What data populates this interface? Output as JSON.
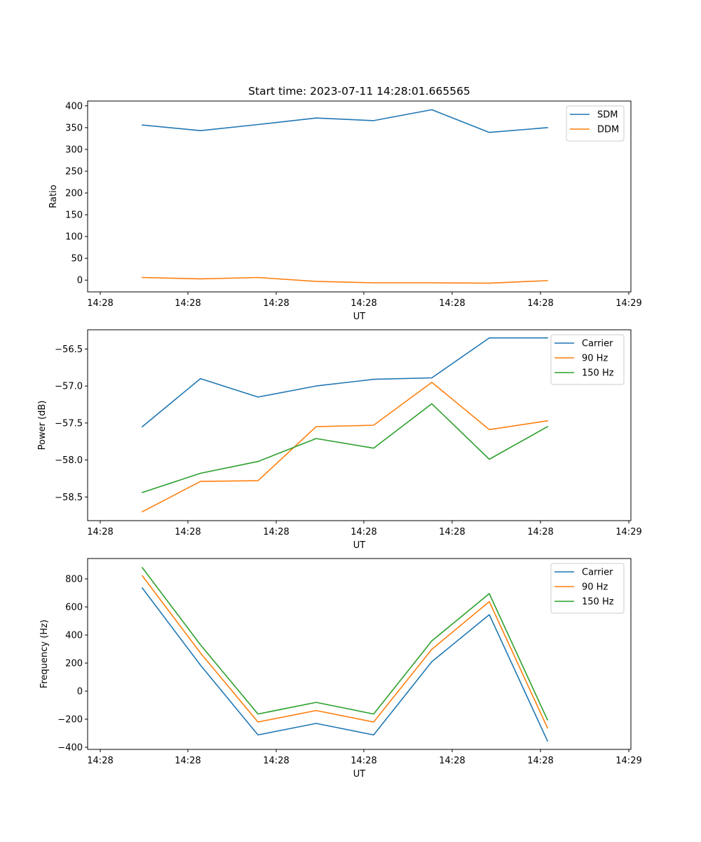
{
  "figure": {
    "title": "Start time: 2023-07-11 14:28:01.665565"
  },
  "colors": {
    "blue": "#1f77b4",
    "orange": "#ff7f0e",
    "green": "#2ca02c"
  },
  "chart_data": [
    {
      "type": "line",
      "title": "Start time: 2023-07-11 14:28:01.665565",
      "xlabel": "UT",
      "ylabel": "Ratio",
      "x_tick_labels": [
        "14:28",
        "14:28",
        "14:28",
        "14:28",
        "14:28",
        "14:28",
        "14:29"
      ],
      "y_ticks": [
        0,
        50,
        100,
        150,
        200,
        250,
        300,
        350,
        400
      ],
      "ylim": [
        -27,
        411
      ],
      "legend_position": "top-right",
      "series": [
        {
          "name": "SDM",
          "color": "#1f77b4",
          "values": [
            356,
            343,
            357,
            372,
            366,
            391,
            339,
            350
          ]
        },
        {
          "name": "DDM",
          "color": "#ff7f0e",
          "values": [
            6,
            3,
            6,
            -3,
            -6,
            -6,
            -7,
            -1
          ]
        }
      ]
    },
    {
      "type": "line",
      "xlabel": "UT",
      "ylabel": "Power (dB)",
      "x_tick_labels": [
        "14:28",
        "14:28",
        "14:28",
        "14:28",
        "14:28",
        "14:28",
        "14:29"
      ],
      "y_ticks": [
        -58.5,
        -58.0,
        -57.5,
        -57.0,
        -56.5
      ],
      "y_tick_labels": [
        "−58.5",
        "−58.0",
        "−57.5",
        "−57.0",
        "−56.5"
      ],
      "ylim": [
        -58.82,
        -56.24
      ],
      "legend_position": "top-right",
      "series": [
        {
          "name": "Carrier",
          "color": "#1f77b4",
          "values": [
            -57.55,
            -56.9,
            -57.15,
            -57.0,
            -56.91,
            -56.89,
            -56.35,
            -56.35
          ]
        },
        {
          "name": "90 Hz",
          "color": "#ff7f0e",
          "values": [
            -58.7,
            -58.29,
            -58.28,
            -57.55,
            -57.53,
            -56.95,
            -57.59,
            -57.47
          ]
        },
        {
          "name": "150 Hz",
          "color": "#2ca02c",
          "values": [
            -58.44,
            -58.18,
            -58.02,
            -57.71,
            -57.84,
            -57.24,
            -57.99,
            -57.55
          ]
        }
      ]
    },
    {
      "type": "line",
      "xlabel": "UT",
      "ylabel": "Frequency (Hz)",
      "x_tick_labels": [
        "14:28",
        "14:28",
        "14:28",
        "14:28",
        "14:28",
        "14:28",
        "14:29"
      ],
      "y_ticks": [
        -400,
        -200,
        0,
        200,
        400,
        600,
        800
      ],
      "y_tick_labels": [
        "−400",
        "−200",
        "0",
        "200",
        "400",
        "600",
        "800"
      ],
      "ylim": [
        -415,
        945
      ],
      "legend_position": "top-right",
      "series": [
        {
          "name": "Carrier",
          "color": "#1f77b4",
          "values": [
            735,
            185,
            -312,
            -230,
            -312,
            210,
            545,
            -355
          ]
        },
        {
          "name": "90 Hz",
          "color": "#ff7f0e",
          "values": [
            822,
            272,
            -220,
            -138,
            -220,
            298,
            638,
            -262
          ]
        },
        {
          "name": "150 Hz",
          "color": "#2ca02c",
          "values": [
            880,
            330,
            -163,
            -80,
            -163,
            358,
            695,
            -205
          ]
        }
      ]
    }
  ]
}
